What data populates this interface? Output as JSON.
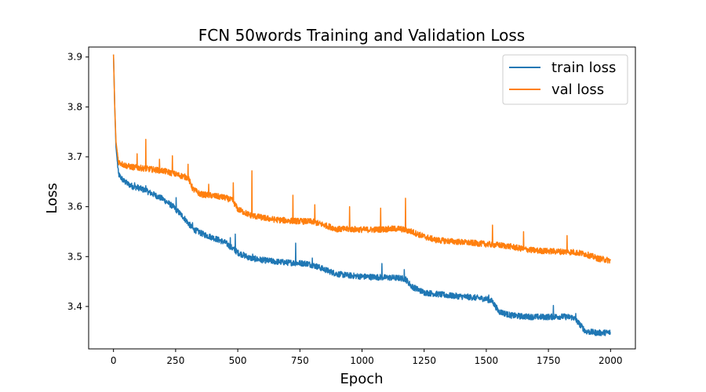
{
  "chart_data": {
    "type": "line",
    "title": "FCN 50words Training and Validation Loss",
    "xlabel": "Epoch",
    "ylabel": "Loss",
    "xlim": [
      -100,
      2100
    ],
    "ylim": [
      3.315,
      3.92
    ],
    "xticks": [
      0,
      250,
      500,
      750,
      1000,
      1250,
      1500,
      1750,
      2000
    ],
    "yticks": [
      3.4,
      3.5,
      3.6,
      3.7,
      3.8,
      3.9
    ],
    "grid": false,
    "legend": {
      "placement": "top-right"
    },
    "series": [
      {
        "name": "train loss",
        "color": "#1f77b4",
        "x": [
          0,
          5,
          10,
          20,
          40,
          60,
          80,
          100,
          130,
          160,
          200,
          240,
          280,
          320,
          360,
          400,
          450,
          500,
          550,
          600,
          650,
          700,
          740,
          780,
          820,
          860,
          900,
          950,
          1000,
          1050,
          1100,
          1150,
          1175,
          1200,
          1250,
          1300,
          1350,
          1400,
          1450,
          1500,
          1525,
          1550,
          1600,
          1650,
          1700,
          1750,
          1800,
          1850,
          1875,
          1900,
          1950,
          2000
        ],
        "y": [
          3.905,
          3.8,
          3.72,
          3.665,
          3.652,
          3.645,
          3.64,
          3.638,
          3.632,
          3.625,
          3.615,
          3.6,
          3.58,
          3.555,
          3.545,
          3.538,
          3.528,
          3.508,
          3.497,
          3.493,
          3.49,
          3.488,
          3.487,
          3.486,
          3.48,
          3.472,
          3.465,
          3.462,
          3.46,
          3.459,
          3.458,
          3.457,
          3.455,
          3.44,
          3.428,
          3.425,
          3.422,
          3.42,
          3.418,
          3.415,
          3.41,
          3.39,
          3.382,
          3.38,
          3.379,
          3.379,
          3.38,
          3.378,
          3.365,
          3.35,
          3.347,
          3.348
        ],
        "spikes": [
          {
            "x": 50,
            "y": 3.652
          },
          {
            "x": 85,
            "y": 3.648
          },
          {
            "x": 130,
            "y": 3.642
          },
          {
            "x": 252,
            "y": 3.618
          },
          {
            "x": 318,
            "y": 3.568
          },
          {
            "x": 470,
            "y": 3.538
          },
          {
            "x": 490,
            "y": 3.545
          },
          {
            "x": 560,
            "y": 3.505
          },
          {
            "x": 733,
            "y": 3.527
          },
          {
            "x": 800,
            "y": 3.497
          },
          {
            "x": 1080,
            "y": 3.486
          },
          {
            "x": 1170,
            "y": 3.474
          },
          {
            "x": 1510,
            "y": 3.423
          },
          {
            "x": 1770,
            "y": 3.402
          },
          {
            "x": 1860,
            "y": 3.386
          }
        ]
      },
      {
        "name": "val loss",
        "color": "#ff7f0e",
        "x": [
          0,
          5,
          10,
          20,
          40,
          60,
          80,
          100,
          150,
          200,
          250,
          300,
          320,
          350,
          400,
          450,
          480,
          500,
          550,
          600,
          650,
          700,
          750,
          800,
          850,
          900,
          950,
          1000,
          1050,
          1100,
          1150,
          1200,
          1250,
          1300,
          1350,
          1400,
          1450,
          1500,
          1550,
          1600,
          1650,
          1700,
          1750,
          1800,
          1850,
          1900,
          1950,
          2000
        ],
        "y": [
          3.905,
          3.8,
          3.73,
          3.69,
          3.684,
          3.681,
          3.679,
          3.678,
          3.675,
          3.672,
          3.665,
          3.658,
          3.635,
          3.625,
          3.622,
          3.618,
          3.612,
          3.595,
          3.583,
          3.578,
          3.574,
          3.572,
          3.571,
          3.57,
          3.563,
          3.555,
          3.555,
          3.554,
          3.554,
          3.555,
          3.556,
          3.55,
          3.54,
          3.533,
          3.531,
          3.529,
          3.527,
          3.525,
          3.523,
          3.52,
          3.515,
          3.512,
          3.511,
          3.51,
          3.509,
          3.505,
          3.496,
          3.492
        ],
        "spikes": [
          {
            "x": 95,
            "y": 3.706
          },
          {
            "x": 130,
            "y": 3.735
          },
          {
            "x": 185,
            "y": 3.695
          },
          {
            "x": 237,
            "y": 3.702
          },
          {
            "x": 300,
            "y": 3.685
          },
          {
            "x": 383,
            "y": 3.645
          },
          {
            "x": 482,
            "y": 3.648
          },
          {
            "x": 557,
            "y": 3.672
          },
          {
            "x": 722,
            "y": 3.623
          },
          {
            "x": 810,
            "y": 3.604
          },
          {
            "x": 950,
            "y": 3.6
          },
          {
            "x": 1075,
            "y": 3.597
          },
          {
            "x": 1175,
            "y": 3.617
          },
          {
            "x": 1525,
            "y": 3.563
          },
          {
            "x": 1650,
            "y": 3.55
          },
          {
            "x": 1825,
            "y": 3.542
          }
        ]
      }
    ]
  }
}
